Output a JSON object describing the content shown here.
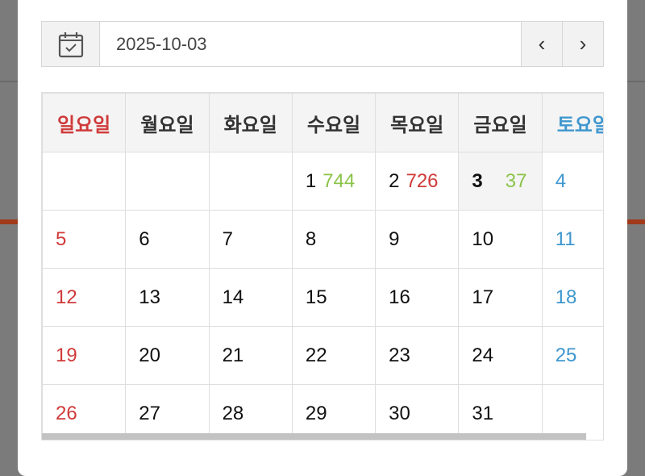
{
  "date_value": "2025-10-03",
  "icons": {
    "calendar": "calendar-check-icon",
    "prev": "chevron-left-icon",
    "next": "chevron-right-icon"
  },
  "nav": {
    "prev": "‹",
    "next": "›"
  },
  "weekdays": [
    "일요일",
    "월요일",
    "화요일",
    "수요일",
    "목요일",
    "금요일",
    "토요일"
  ],
  "colors": {
    "sunday": "#d03a3a",
    "saturday": "#3f97cf",
    "count_green": "#8bc34a",
    "count_red": "#d03a3a"
  },
  "weeks": [
    [
      {
        "day": ""
      },
      {
        "day": ""
      },
      {
        "day": ""
      },
      {
        "day": "1",
        "count": "744",
        "count_color": "green"
      },
      {
        "day": "2",
        "count": "726",
        "count_color": "red"
      },
      {
        "day": "3",
        "count": "37",
        "count_color": "green",
        "selected": true
      },
      {
        "day": "4"
      }
    ],
    [
      {
        "day": "5"
      },
      {
        "day": "6"
      },
      {
        "day": "7"
      },
      {
        "day": "8"
      },
      {
        "day": "9"
      },
      {
        "day": "10"
      },
      {
        "day": "11"
      }
    ],
    [
      {
        "day": "12"
      },
      {
        "day": "13"
      },
      {
        "day": "14"
      },
      {
        "day": "15"
      },
      {
        "day": "16"
      },
      {
        "day": "17"
      },
      {
        "day": "18"
      }
    ],
    [
      {
        "day": "19"
      },
      {
        "day": "20"
      },
      {
        "day": "21"
      },
      {
        "day": "22"
      },
      {
        "day": "23"
      },
      {
        "day": "24"
      },
      {
        "day": "25"
      }
    ],
    [
      {
        "day": "26"
      },
      {
        "day": "27"
      },
      {
        "day": "28"
      },
      {
        "day": "29"
      },
      {
        "day": "30"
      },
      {
        "day": "31"
      },
      {
        "day": ""
      }
    ]
  ]
}
